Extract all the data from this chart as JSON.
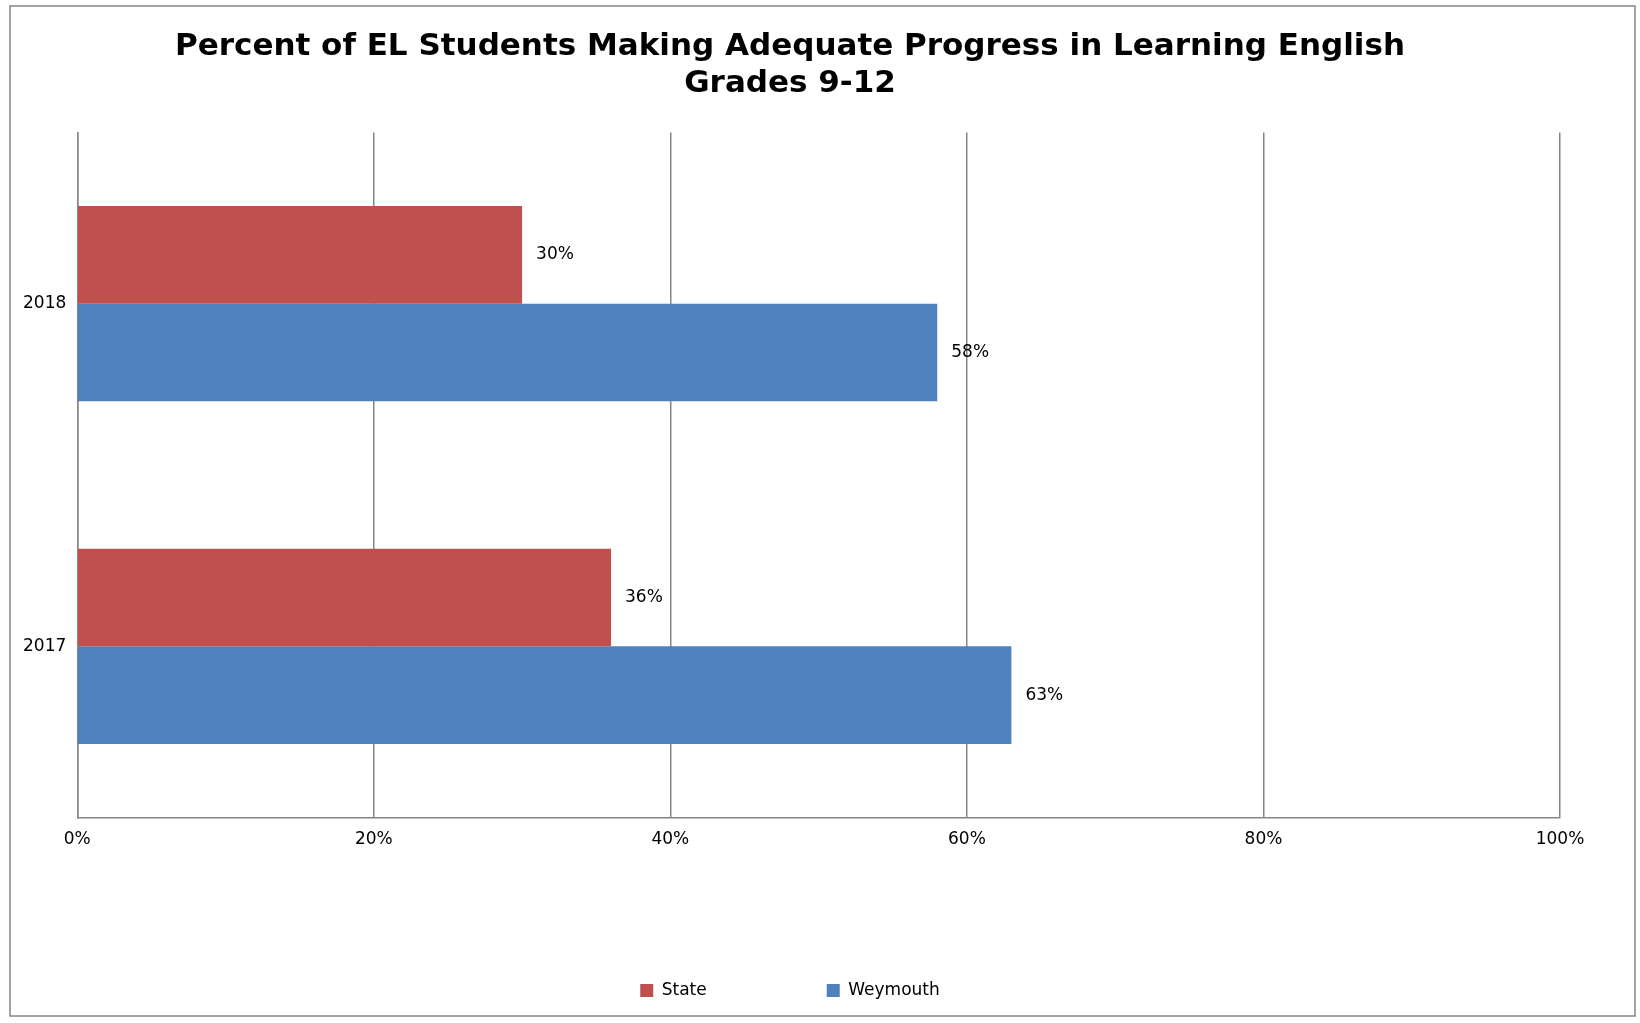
{
  "chart_data": {
    "type": "bar",
    "orientation": "horizontal",
    "title": "Percent of EL Students Making Adequate Progress in Learning English\nGrades 9-12",
    "categories": [
      "2018",
      "2017"
    ],
    "series": [
      {
        "name": "State",
        "color": "#c0504d",
        "values": [
          30,
          36
        ],
        "value_labels": [
          "30%",
          "36%"
        ]
      },
      {
        "name": "Weymouth",
        "color": "#4f81bd",
        "values": [
          58,
          63
        ],
        "value_labels": [
          "58%",
          "63%"
        ]
      }
    ],
    "xlim": [
      0,
      100
    ],
    "xticks": [
      {
        "value": 0,
        "label": "0%"
      },
      {
        "value": 20,
        "label": "20%"
      },
      {
        "value": 40,
        "label": "40%"
      },
      {
        "value": 60,
        "label": "60%"
      },
      {
        "value": 80,
        "label": "80%"
      },
      {
        "value": 100,
        "label": "100%"
      }
    ],
    "grid": "x",
    "legend": "bottom"
  }
}
